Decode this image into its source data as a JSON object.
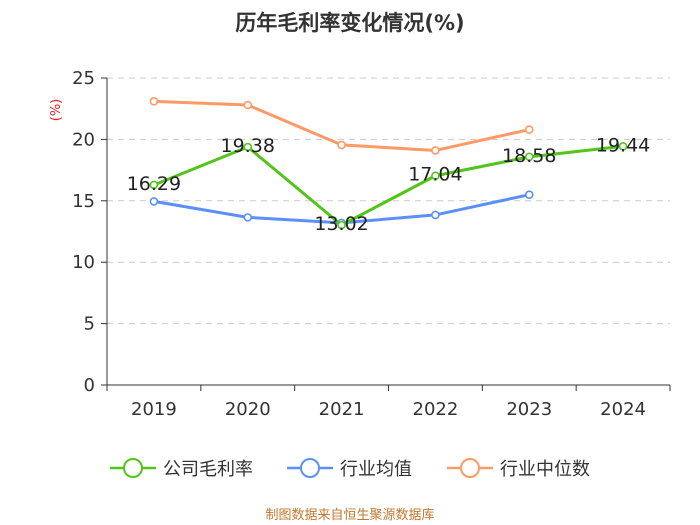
{
  "chart_data": {
    "type": "line",
    "title": "历年毛利率变化情况(%)",
    "ylabel": "(%)",
    "xlabel": "",
    "categories": [
      "2019",
      "2020",
      "2021",
      "2022",
      "2023",
      "2024"
    ],
    "ylim": [
      0,
      25
    ],
    "yticks": [
      0,
      5,
      10,
      15,
      20,
      25
    ],
    "grid": true,
    "legend_position": "bottom",
    "series": [
      {
        "name": "公司毛利率",
        "color": "#52c41a",
        "values": [
          16.29,
          19.38,
          13.02,
          17.04,
          18.58,
          19.44
        ],
        "labels": [
          "16.29",
          "19.38",
          "13.02",
          "17.04",
          "18.58",
          "19.44"
        ]
      },
      {
        "name": "行业均值",
        "color": "#5b8ff9",
        "values": [
          14.95,
          13.65,
          13.2,
          13.85,
          15.5,
          null
        ]
      },
      {
        "name": "行业中位数",
        "color": "#ff9966",
        "values": [
          23.1,
          22.8,
          19.55,
          19.1,
          20.8,
          null
        ]
      }
    ]
  },
  "source": "制图数据来自恒生聚源数据库"
}
